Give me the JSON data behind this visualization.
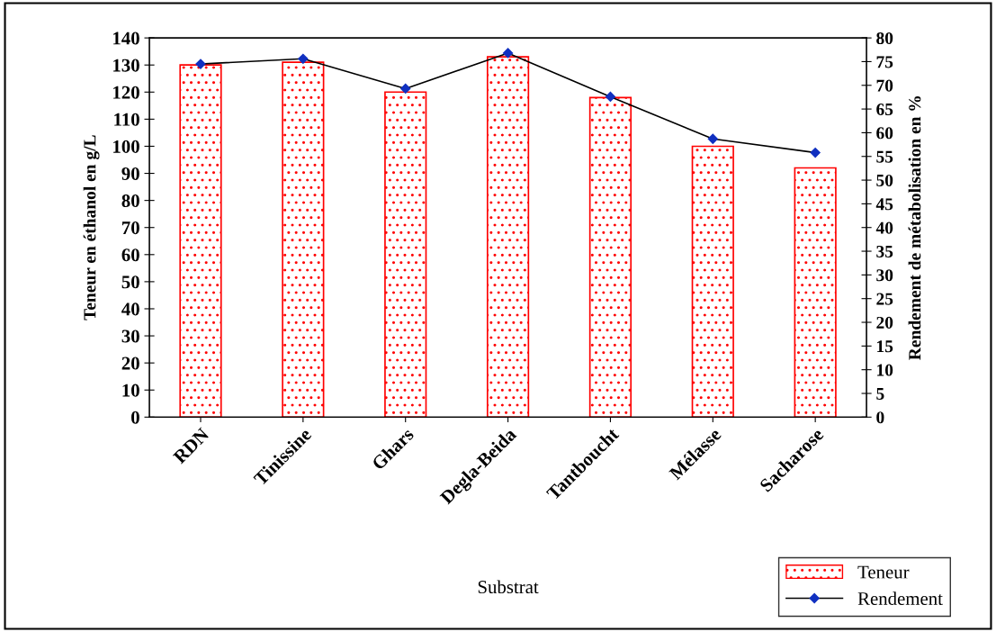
{
  "chart_data": {
    "type": "bar",
    "xlabel": "Substrat",
    "ylabel": "Teneur en éthanol en g/L",
    "y2label": "Rendement de métabolisation en %",
    "categories": [
      "RDN",
      "Tinissine",
      "Ghars",
      "Degla-Beida",
      "Tantboucht",
      "Mélasse",
      "Sacharose"
    ],
    "series": [
      {
        "name": "Teneur",
        "color": "#ff0000",
        "values": [
          130,
          131,
          120,
          133,
          118,
          100,
          92
        ]
      },
      {
        "name": "Rendement",
        "type": "line",
        "axis": "y2",
        "color": "#000000",
        "marker": "diamond",
        "values": [
          74.5,
          75.6,
          69.3,
          76.8,
          67.6,
          58.7,
          55.8
        ]
      }
    ],
    "ylim": [
      0,
      140
    ],
    "yticks": [
      0,
      10,
      20,
      30,
      40,
      50,
      60,
      70,
      80,
      90,
      100,
      110,
      120,
      130,
      140
    ],
    "y2lim": [
      0,
      80
    ],
    "y2ticks": [
      0,
      5,
      10,
      15,
      20,
      25,
      30,
      35,
      40,
      45,
      50,
      55,
      60,
      65,
      70,
      75,
      80
    ],
    "grid": false,
    "legend": "bottom right"
  }
}
